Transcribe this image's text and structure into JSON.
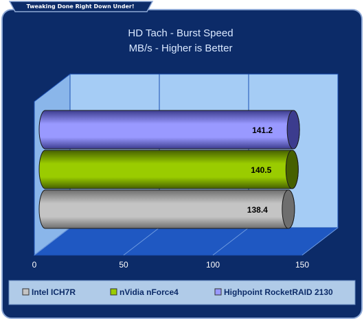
{
  "banner": {
    "text": "Tweaking Done Right Down Under!"
  },
  "colors": {
    "background": "#0c2b68",
    "plot_back": "#a5ccf5",
    "plot_floor": "#1f58c2",
    "grid": "#1b4fb3",
    "axis_text": "#ffffff",
    "title_text": "#ffffff",
    "legend_box": "#b0cbe8",
    "legend_text": "#0c2b68"
  },
  "chart_data": {
    "type": "bar",
    "orientation": "horizontal",
    "style": "3d-cylinder",
    "title": "HD Tach - Burst Speed",
    "subtitle": "MB/s - Higher is Better",
    "xlabel": "",
    "ylabel": "",
    "xlim": [
      0,
      150
    ],
    "xticks": [
      "0",
      "50",
      "100",
      "150"
    ],
    "grid": true,
    "legend_position": "bottom",
    "series": [
      {
        "name": "Intel ICH7R",
        "value": 138.4,
        "label": "138.4",
        "color": "#c4c4c4",
        "dark": "#6e6e6e"
      },
      {
        "name": "nVidia nForce4",
        "value": 140.5,
        "label": "140.5",
        "color": "#9acc00",
        "dark": "#466000"
      },
      {
        "name": "Highpoint RocketRAID 2130",
        "value": 141.2,
        "label": "141.2",
        "color": "#9999ff",
        "dark": "#3c3c8e"
      }
    ]
  }
}
